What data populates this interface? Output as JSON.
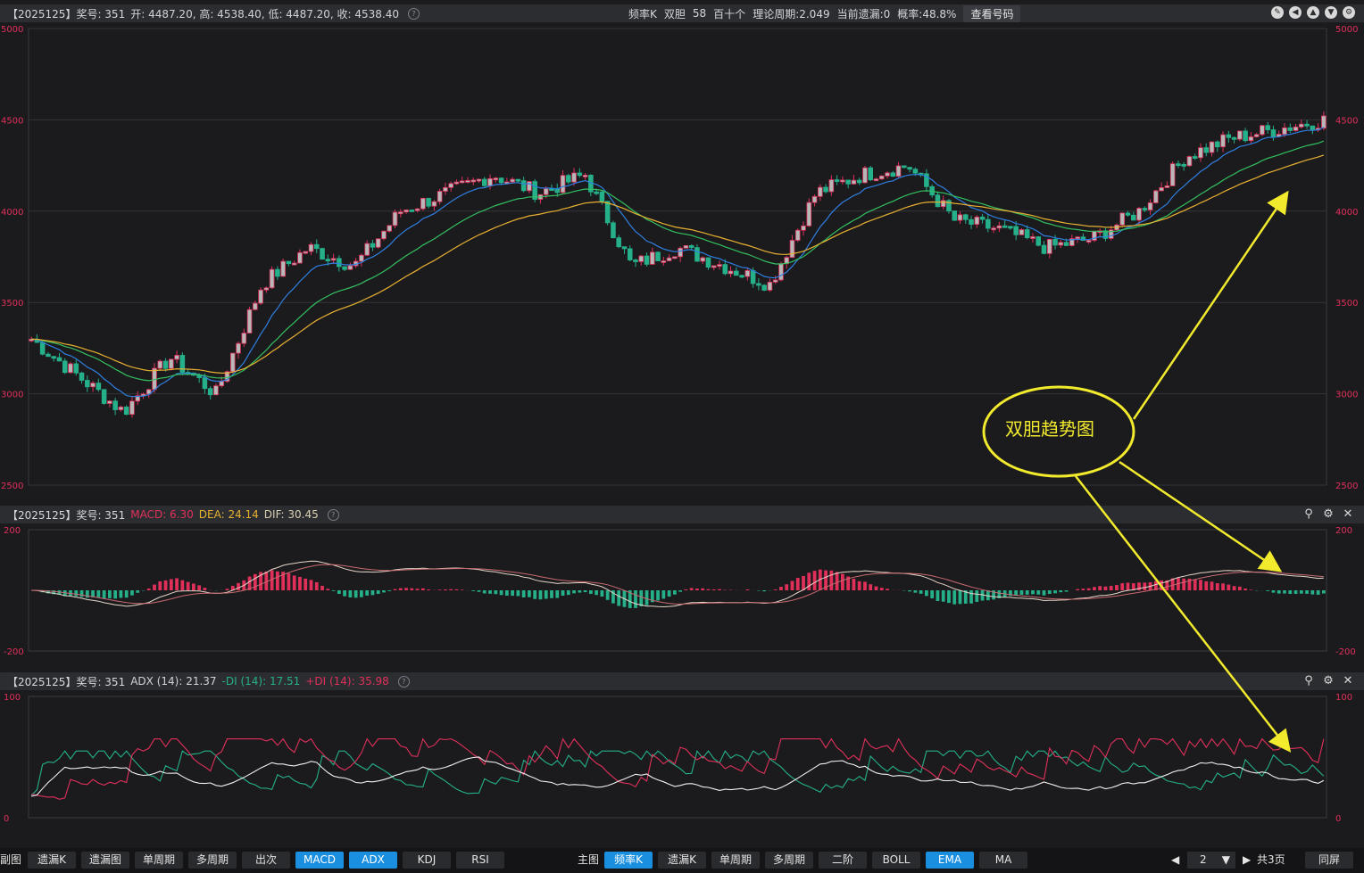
{
  "header": {
    "title": "【2025125】奖号: 351",
    "ohlc": "开: 4487.20, 高: 4538.40, 低: 4487.20, 收: 4538.40",
    "info": [
      "频率K",
      "双胆",
      "58",
      "百十个",
      "理论周期:2.049",
      "当前遗漏:0",
      "概率:48.8%"
    ],
    "query_button": "查看号码",
    "window_buttons": [
      "pencil-icon",
      "back-icon",
      "up-icon",
      "down-icon",
      "gear-icon"
    ]
  },
  "macd_bar": {
    "title": "【2025125】奖号: 351",
    "macd": "MACD: 6.30",
    "dea": "DEA: 24.14",
    "dif": "DIF: 30.45"
  },
  "adx_bar": {
    "title": "【2025125】奖号: 351",
    "adx": "ADX (14): 21.37",
    "minus_di": "-DI (14): 17.51",
    "plus_di": "+DI (14): 35.98"
  },
  "annotation": "双胆趋势图",
  "bottom_bar": {
    "sub_label": "副图",
    "sub_buttons": [
      "遗漏K",
      "遗漏图",
      "单周期",
      "多周期",
      "出次",
      "MACD",
      "ADX",
      "KDJ",
      "RSI"
    ],
    "main_label": "主图",
    "main_buttons": [
      "频率K",
      "遗漏K",
      "单周期",
      "多周期",
      "二阶",
      "BOLL",
      "EMA",
      "MA"
    ],
    "page_value": "2",
    "page_total": "共3页",
    "same_screen": "同屏"
  },
  "colors": {
    "up": "#e0305a",
    "down": "#25b08a",
    "ema1": "#2f7fe0",
    "ema2": "#33c060",
    "ema3": "#e8b030",
    "annotation": "#f2ea2d",
    "active_button": "#1a8fe0"
  },
  "chart_data": [
    {
      "type": "candlestick",
      "ylim": [
        2500,
        5000
      ],
      "yticks": [
        2500,
        3000,
        3500,
        4000,
        4500,
        5000
      ],
      "close_path": [
        3300,
        3100,
        2900,
        3200,
        3000,
        3600,
        3800,
        3700,
        4000,
        4100,
        4200,
        4100,
        4200,
        3700,
        3800,
        3700,
        3600,
        4100,
        4200,
        4250,
        3950,
        3900,
        3800,
        3850,
        4000,
        4300,
        4400,
        4450,
        4500
      ],
      "series": [
        "EMA short",
        "EMA mid",
        "EMA long"
      ],
      "grid": true
    },
    {
      "type": "macd",
      "ylim": [
        -200,
        200
      ],
      "yticks": [
        -200,
        200
      ]
    },
    {
      "type": "adx",
      "ylim": [
        0,
        100
      ],
      "yticks": [
        0,
        100
      ]
    }
  ]
}
